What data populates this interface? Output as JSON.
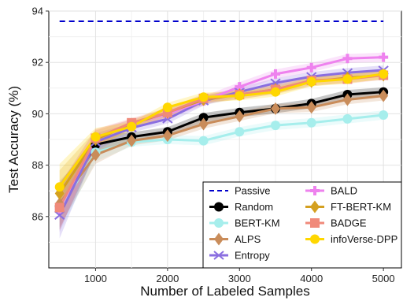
{
  "chart_data": {
    "type": "line",
    "xlabel": "Number of Labeled Samples",
    "ylabel": "Test Accuracy (%)",
    "xlim": [
      350,
      5250
    ],
    "ylim": [
      84.0,
      94.0
    ],
    "x_ticks": [
      1000,
      2000,
      3000,
      4000,
      5000
    ],
    "y_ticks": [
      86,
      88,
      90,
      92,
      94
    ],
    "x": [
      500,
      1000,
      1500,
      2000,
      2500,
      3000,
      3500,
      4000,
      4500,
      5000
    ],
    "grid": true,
    "legend_position": "bottom-right",
    "series": [
      {
        "name": "Passive",
        "style": "dashed",
        "color": "#0000cc",
        "marker": "none",
        "values": [
          93.6,
          93.6,
          93.6,
          93.6,
          93.6,
          93.6,
          93.6,
          93.6,
          93.6,
          93.6
        ]
      },
      {
        "name": "Random",
        "style": "solid",
        "color": "#000000",
        "marker": "circle",
        "values": [
          86.4,
          88.8,
          89.1,
          89.3,
          89.85,
          90.05,
          90.2,
          90.4,
          90.75,
          90.85
        ]
      },
      {
        "name": "BERT-KM",
        "style": "solid",
        "color": "#a6eeec",
        "marker": "circle",
        "values": [
          86.3,
          88.5,
          88.9,
          89.0,
          88.95,
          89.3,
          89.55,
          89.65,
          89.8,
          89.95
        ]
      },
      {
        "name": "ALPS",
        "style": "solid",
        "color": "#c98c5a",
        "marker": "diamond",
        "values": [
          86.5,
          88.4,
          88.95,
          89.15,
          89.6,
          89.9,
          90.2,
          90.25,
          90.55,
          90.7
        ]
      },
      {
        "name": "Entropy",
        "style": "solid",
        "color": "#8a6ee0",
        "marker": "x",
        "values": [
          86.05,
          88.9,
          89.45,
          89.8,
          90.5,
          90.85,
          91.2,
          91.45,
          91.6,
          91.7
        ]
      },
      {
        "name": "BALD",
        "style": "solid",
        "color": "#ee82ee",
        "marker": "plus",
        "values": [
          86.3,
          89.05,
          89.6,
          90.0,
          90.5,
          91.05,
          91.55,
          91.8,
          92.15,
          92.2
        ]
      },
      {
        "name": "FT-BERT-KM",
        "style": "solid",
        "color": "#d4a020",
        "marker": "diamond",
        "values": [
          86.9,
          89.0,
          89.6,
          90.05,
          90.55,
          90.75,
          90.95,
          91.25,
          91.4,
          91.5
        ]
      },
      {
        "name": "BADGE",
        "style": "solid",
        "color": "#f08a7a",
        "marker": "square",
        "values": [
          86.35,
          89.05,
          89.65,
          90.05,
          90.6,
          90.75,
          90.95,
          91.3,
          91.35,
          91.5
        ]
      },
      {
        "name": "infoVerse-DPP",
        "style": "solid",
        "color": "#ffd700",
        "marker": "circle",
        "values": [
          87.15,
          89.1,
          89.5,
          90.25,
          90.65,
          90.7,
          90.85,
          91.25,
          91.35,
          91.55
        ]
      }
    ]
  }
}
